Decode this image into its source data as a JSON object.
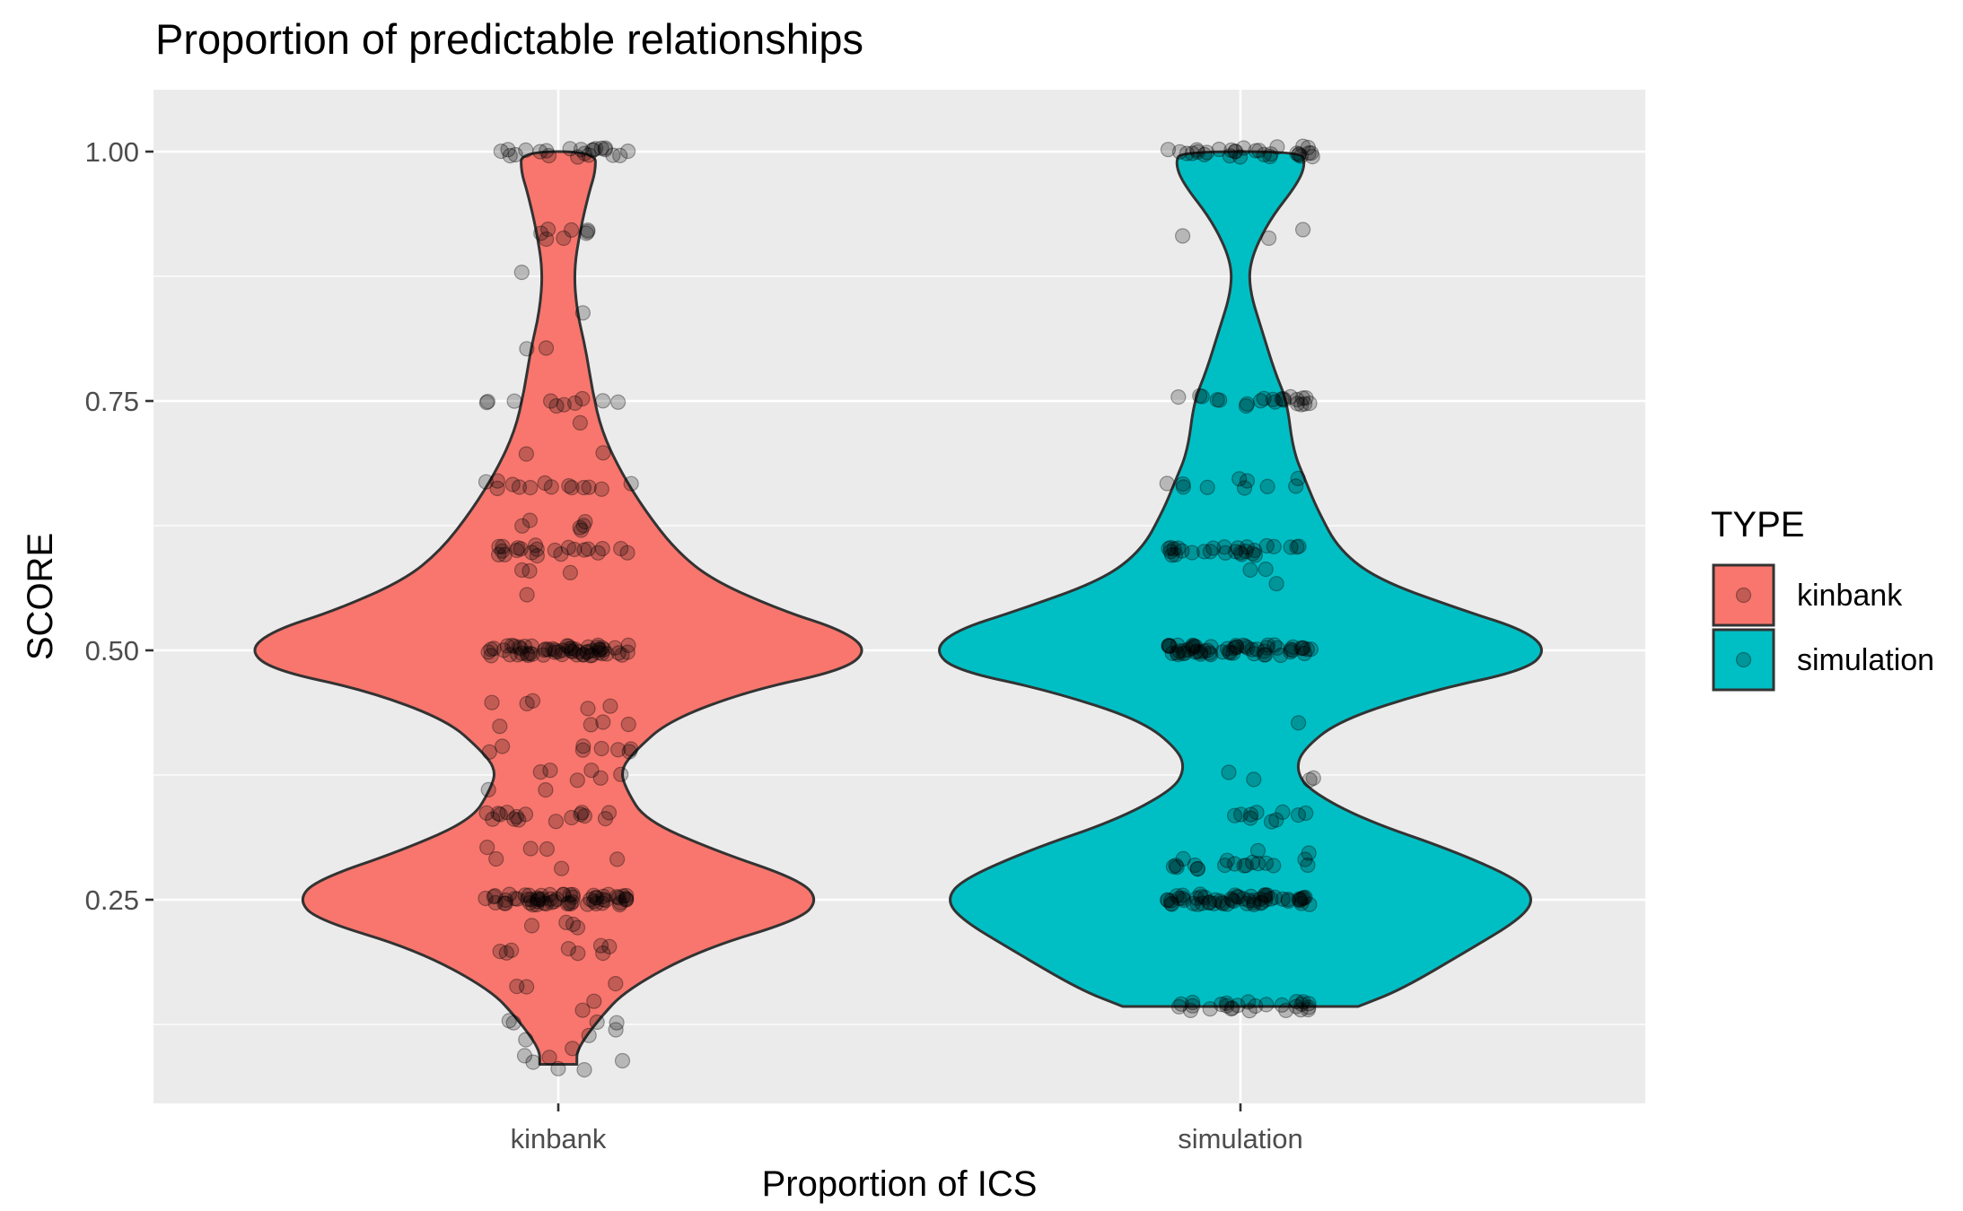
{
  "chart_data": {
    "type": "violin",
    "title": "Proportion of predictable relationships",
    "xlabel": "Proportion of ICS",
    "ylabel": "SCORE",
    "categories": [
      "kinbank",
      "simulation"
    ],
    "ylim": [
      0.07,
      1.05
    ],
    "yticks": [
      0.25,
      0.5,
      0.75,
      1.0
    ],
    "ytick_labels": [
      "0.25",
      "0.50",
      "0.75",
      "1.00"
    ],
    "grid": true,
    "legend": {
      "title": "TYPE",
      "position": "right",
      "entries": [
        {
          "label": "kinbank",
          "color": "#F8766D"
        },
        {
          "label": "simulation",
          "color": "#00BFC4"
        }
      ]
    },
    "series": [
      {
        "name": "kinbank",
        "color": "#F8766D",
        "range": [
          0.085,
          1.0
        ],
        "density_profile": [
          {
            "y": 0.085,
            "w": 0.06
          },
          {
            "y": 0.1,
            "w": 0.06
          },
          {
            "y": 0.13,
            "w": 0.13
          },
          {
            "y": 0.16,
            "w": 0.22
          },
          {
            "y": 0.2,
            "w": 0.46
          },
          {
            "y": 0.23,
            "w": 0.78
          },
          {
            "y": 0.25,
            "w": 0.84
          },
          {
            "y": 0.27,
            "w": 0.78
          },
          {
            "y": 0.3,
            "w": 0.5
          },
          {
            "y": 0.33,
            "w": 0.28
          },
          {
            "y": 0.36,
            "w": 0.22
          },
          {
            "y": 0.38,
            "w": 0.2
          },
          {
            "y": 0.4,
            "w": 0.25
          },
          {
            "y": 0.43,
            "w": 0.36
          },
          {
            "y": 0.46,
            "w": 0.62
          },
          {
            "y": 0.48,
            "w": 0.92
          },
          {
            "y": 0.5,
            "w": 1.0
          },
          {
            "y": 0.52,
            "w": 0.92
          },
          {
            "y": 0.54,
            "w": 0.72
          },
          {
            "y": 0.57,
            "w": 0.5
          },
          {
            "y": 0.6,
            "w": 0.38
          },
          {
            "y": 0.64,
            "w": 0.28
          },
          {
            "y": 0.68,
            "w": 0.2
          },
          {
            "y": 0.72,
            "w": 0.14
          },
          {
            "y": 0.76,
            "w": 0.11
          },
          {
            "y": 0.8,
            "w": 0.09
          },
          {
            "y": 0.84,
            "w": 0.06
          },
          {
            "y": 0.88,
            "w": 0.05
          },
          {
            "y": 0.92,
            "w": 0.07
          },
          {
            "y": 0.96,
            "w": 0.1
          },
          {
            "y": 0.98,
            "w": 0.12
          },
          {
            "y": 1.0,
            "w": 0.12
          }
        ],
        "point_clusters": [
          {
            "y": 1.0,
            "n": 22
          },
          {
            "y": 0.917,
            "n": 8
          },
          {
            "y": 0.875,
            "n": 1
          },
          {
            "y": 0.833,
            "n": 1
          },
          {
            "y": 0.8,
            "n": 2
          },
          {
            "y": 0.75,
            "n": 10
          },
          {
            "y": 0.727,
            "n": 1
          },
          {
            "y": 0.7,
            "n": 2
          },
          {
            "y": 0.667,
            "n": 14
          },
          {
            "y": 0.625,
            "n": 6
          },
          {
            "y": 0.6,
            "n": 22
          },
          {
            "y": 0.583,
            "n": 3
          },
          {
            "y": 0.556,
            "n": 1
          },
          {
            "y": 0.5,
            "n": 60
          },
          {
            "y": 0.444,
            "n": 5
          },
          {
            "y": 0.429,
            "n": 4
          },
          {
            "y": 0.4,
            "n": 8
          },
          {
            "y": 0.375,
            "n": 6
          },
          {
            "y": 0.364,
            "n": 2
          },
          {
            "y": 0.333,
            "n": 16
          },
          {
            "y": 0.3,
            "n": 3
          },
          {
            "y": 0.286,
            "n": 3
          },
          {
            "y": 0.25,
            "n": 60
          },
          {
            "y": 0.222,
            "n": 4
          },
          {
            "y": 0.2,
            "n": 8
          },
          {
            "y": 0.167,
            "n": 3
          },
          {
            "y": 0.143,
            "n": 2
          },
          {
            "y": 0.125,
            "n": 5
          },
          {
            "y": 0.111,
            "n": 2
          },
          {
            "y": 0.1,
            "n": 1
          },
          {
            "y": 0.091,
            "n": 3
          },
          {
            "y": 0.083,
            "n": 3
          }
        ]
      },
      {
        "name": "simulation",
        "color": "#00BFC4",
        "range": [
          0.143,
          1.0
        ],
        "density_profile": [
          {
            "y": 0.143,
            "w": 0.38
          },
          {
            "y": 0.16,
            "w": 0.52
          },
          {
            "y": 0.2,
            "w": 0.74
          },
          {
            "y": 0.23,
            "w": 0.9
          },
          {
            "y": 0.25,
            "w": 0.95
          },
          {
            "y": 0.27,
            "w": 0.9
          },
          {
            "y": 0.3,
            "w": 0.68
          },
          {
            "y": 0.33,
            "w": 0.4
          },
          {
            "y": 0.36,
            "w": 0.22
          },
          {
            "y": 0.38,
            "w": 0.18
          },
          {
            "y": 0.4,
            "w": 0.2
          },
          {
            "y": 0.43,
            "w": 0.32
          },
          {
            "y": 0.46,
            "w": 0.62
          },
          {
            "y": 0.48,
            "w": 0.92
          },
          {
            "y": 0.5,
            "w": 0.99
          },
          {
            "y": 0.52,
            "w": 0.92
          },
          {
            "y": 0.54,
            "w": 0.72
          },
          {
            "y": 0.57,
            "w": 0.45
          },
          {
            "y": 0.6,
            "w": 0.32
          },
          {
            "y": 0.64,
            "w": 0.25
          },
          {
            "y": 0.67,
            "w": 0.21
          },
          {
            "y": 0.7,
            "w": 0.17
          },
          {
            "y": 0.75,
            "w": 0.15
          },
          {
            "y": 0.78,
            "w": 0.11
          },
          {
            "y": 0.82,
            "w": 0.07
          },
          {
            "y": 0.86,
            "w": 0.03
          },
          {
            "y": 0.89,
            "w": 0.03
          },
          {
            "y": 0.93,
            "w": 0.09
          },
          {
            "y": 0.97,
            "w": 0.19
          },
          {
            "y": 0.99,
            "w": 0.21
          },
          {
            "y": 1.0,
            "w": 0.19
          }
        ],
        "point_clusters": [
          {
            "y": 1.0,
            "n": 30
          },
          {
            "y": 0.917,
            "n": 3
          },
          {
            "y": 0.75,
            "n": 22
          },
          {
            "y": 0.667,
            "n": 10
          },
          {
            "y": 0.6,
            "n": 28
          },
          {
            "y": 0.583,
            "n": 2
          },
          {
            "y": 0.571,
            "n": 1
          },
          {
            "y": 0.5,
            "n": 60
          },
          {
            "y": 0.429,
            "n": 1
          },
          {
            "y": 0.375,
            "n": 4
          },
          {
            "y": 0.333,
            "n": 10
          },
          {
            "y": 0.3,
            "n": 2
          },
          {
            "y": 0.286,
            "n": 18
          },
          {
            "y": 0.25,
            "n": 60
          },
          {
            "y": 0.143,
            "n": 26
          }
        ]
      }
    ]
  }
}
